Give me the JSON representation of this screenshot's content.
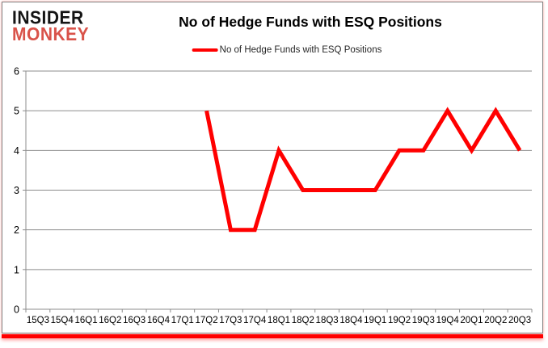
{
  "logo": {
    "line1": "INSIDER",
    "line2": "MONKEY"
  },
  "header": {
    "title": "No of Hedge Funds with ESQ Positions"
  },
  "legend": {
    "label": "No of Hedge Funds with ESQ Positions"
  },
  "colors": {
    "line": "#ff0000",
    "logo_black": "#141414",
    "logo_red": "#d9534a",
    "grid": "#8c8c8c",
    "axis": "#8c8c8c",
    "tick_label": "#000000",
    "bottom_bar": "#ff0000"
  },
  "chart_data": {
    "type": "line",
    "title": "No of Hedge Funds with ESQ Positions",
    "xlabel": "",
    "ylabel": "",
    "categories": [
      "15Q3",
      "15Q4",
      "16Q1",
      "16Q2",
      "16Q3",
      "16Q4",
      "17Q1",
      "17Q2",
      "17Q3",
      "17Q4",
      "18Q1",
      "18Q2",
      "18Q3",
      "18Q4",
      "19Q1",
      "19Q2",
      "19Q3",
      "19Q4",
      "20Q1",
      "20Q2",
      "20Q3"
    ],
    "series": [
      {
        "name": "No of Hedge Funds with ESQ Positions",
        "values": [
          null,
          null,
          null,
          null,
          null,
          null,
          null,
          5,
          2,
          2,
          4,
          3,
          3,
          3,
          3,
          4,
          4,
          5,
          4,
          5,
          4
        ]
      }
    ],
    "ylim": [
      0,
      6
    ],
    "yticks": [
      0,
      1,
      2,
      3,
      4,
      5,
      6
    ],
    "grid": true,
    "legend_position": "top"
  }
}
